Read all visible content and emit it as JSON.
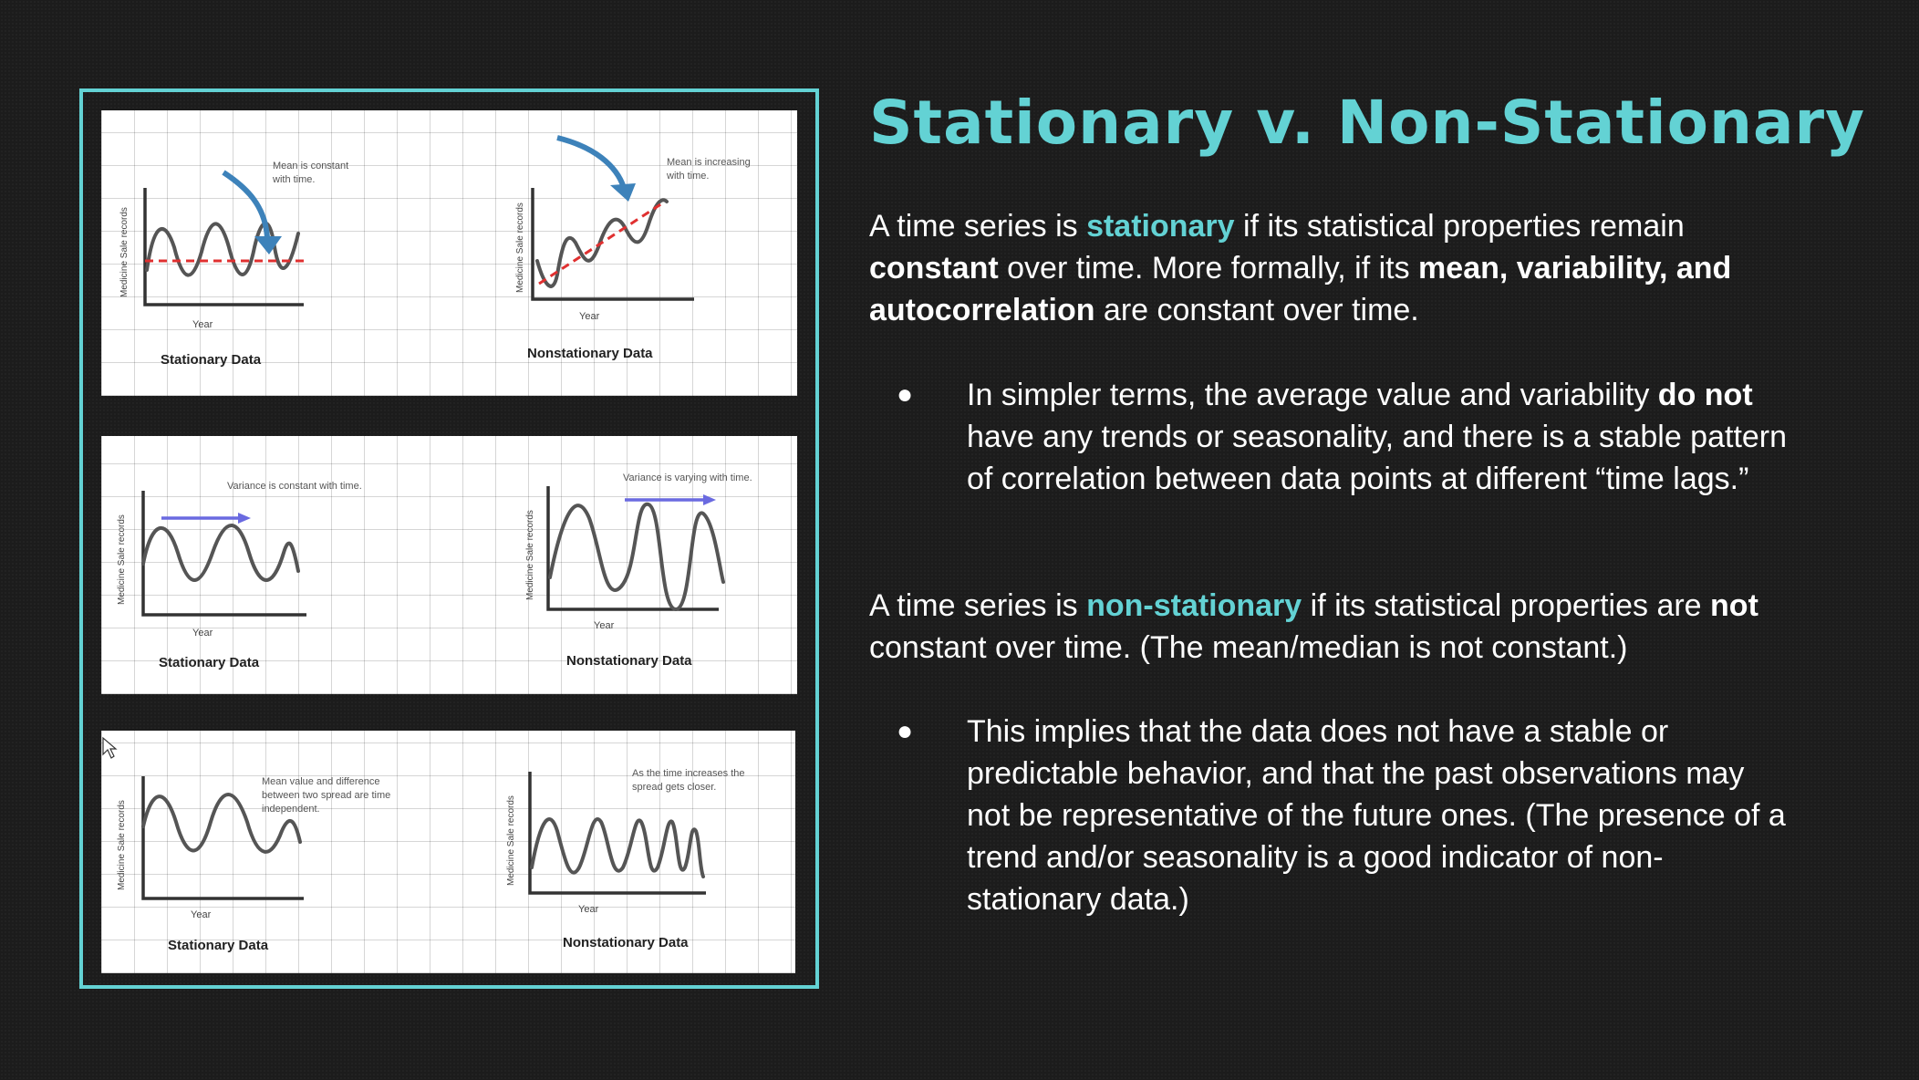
{
  "slide": {
    "title": "Stationary v. Non-Stationary",
    "para1": {
      "t1": "A time series is ",
      "t2": "stationary",
      "t3": " if its statistical properties remain ",
      "t4": "constant",
      "t5": " over time. More formally, if its ",
      "t6": "mean, variability, and autocorrelation",
      "t7": " are constant over time."
    },
    "bullet1": {
      "t1": "In simpler terms, the average value and variability ",
      "t2": "do not",
      "t3": " have any trends or seasonality, and there is a stable pattern of correlation between data points at different “time lags.”"
    },
    "para2": {
      "t1": "A time series is ",
      "t2": "non-stationary",
      "t3": " if its statistical properties are ",
      "t4": "not",
      "t5": " constant over time. (The mean/median is not constant.)"
    },
    "bullet2": {
      "t1": "This implies that the data does not have a stable or predictable behavior, and that the past observations may not be representative of the future ones. (The presence of a trend and/or seasonality is a good indicator of non-stationary data.)"
    },
    "bullet_glyph": "●"
  },
  "figure": {
    "x_label": "Year",
    "y_label": "Medicine Sale records",
    "stationary_caption": "Stationary Data",
    "nonstationary_caption": "Nonstationary Data",
    "row1": {
      "left_note": [
        "Mean is constant",
        "with time."
      ],
      "right_note": [
        "Mean is increasing",
        "with time."
      ]
    },
    "row2": {
      "left_note": [
        "Variance is constant with time."
      ],
      "right_note": [
        "Variance is varying with time."
      ]
    },
    "row3": {
      "left_note": [
        "Mean value and difference",
        "between two spread are time",
        "independent."
      ],
      "right_note": [
        "As the time increases the",
        "spread gets closer."
      ]
    },
    "colors": {
      "accent": "#63d2d4",
      "mean_line": "#e03030",
      "curved_arrow": "#3d82ba",
      "flat_arrow": "#6a6ae0"
    }
  }
}
